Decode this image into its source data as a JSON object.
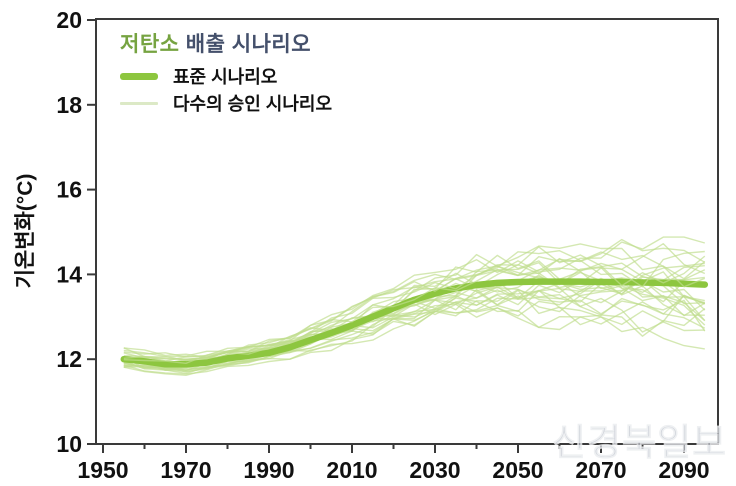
{
  "watermark": "신경북일보",
  "colors": {
    "standard_line": "#8dc63f",
    "ensemble_line": "#bfdd8e",
    "ensemble_pale": "#dce9c6",
    "title_green": "#76a341",
    "title_dark": "#44506b",
    "axis": "#3a3a3a",
    "text": "#111111",
    "watermark": "#a8afbc"
  },
  "legend": {
    "title_part1": "저탄소",
    "title_part2": " 배출 시나리오",
    "items": [
      {
        "label": "표준 시나리오",
        "style": "thick"
      },
      {
        "label": "다수의 승인 시나리오",
        "style": "thin"
      }
    ]
  },
  "chart_data": {
    "type": "line",
    "title": "저탄소 배출 시나리오",
    "xlabel": "",
    "ylabel": "기온변화(°C)",
    "xlim": [
      1948,
      2098
    ],
    "ylim": [
      10,
      20
    ],
    "grid": false,
    "legend_position": "top-left-inside",
    "x_ticks_major": [
      1950,
      1970,
      1990,
      2010,
      2030,
      2050,
      2070,
      2090
    ],
    "x_ticks_minor": [
      1960,
      1980,
      2000,
      2020,
      2040,
      2060,
      2080
    ],
    "y_ticks": [
      10,
      12,
      14,
      16,
      18,
      20
    ],
    "x": [
      1955,
      1960,
      1965,
      1970,
      1975,
      1980,
      1985,
      1990,
      1995,
      2000,
      2005,
      2010,
      2015,
      2020,
      2025,
      2030,
      2035,
      2040,
      2045,
      2050,
      2055,
      2060,
      2065,
      2070,
      2075,
      2080,
      2085,
      2090,
      2095
    ],
    "series": [
      {
        "name": "표준 시나리오",
        "values": [
          12.0,
          11.95,
          11.88,
          11.88,
          11.92,
          12.02,
          12.08,
          12.15,
          12.28,
          12.45,
          12.62,
          12.8,
          13.0,
          13.2,
          13.4,
          13.55,
          13.67,
          13.75,
          13.8,
          13.82,
          13.83,
          13.83,
          13.83,
          13.82,
          13.82,
          13.81,
          13.8,
          13.78,
          13.76
        ]
      }
    ],
    "ensemble": {
      "name": "다수의 승인 시나리오",
      "member_count": 28,
      "seed": 42,
      "envelope_min": [
        11.72,
        11.65,
        11.6,
        11.62,
        11.7,
        11.8,
        11.85,
        11.92,
        12.0,
        12.1,
        12.2,
        12.32,
        12.45,
        12.6,
        12.7,
        12.8,
        12.85,
        12.88,
        12.85,
        12.8,
        12.75,
        12.7,
        12.65,
        12.6,
        12.55,
        12.5,
        12.42,
        12.32,
        12.22
      ],
      "envelope_max": [
        12.3,
        12.22,
        12.15,
        12.15,
        12.2,
        12.32,
        12.4,
        12.5,
        12.65,
        12.85,
        13.05,
        13.25,
        13.5,
        13.75,
        14.0,
        14.25,
        14.45,
        14.6,
        14.7,
        14.78,
        14.75,
        14.7,
        14.72,
        14.78,
        14.82,
        14.85,
        14.88,
        14.9,
        14.88
      ]
    }
  }
}
